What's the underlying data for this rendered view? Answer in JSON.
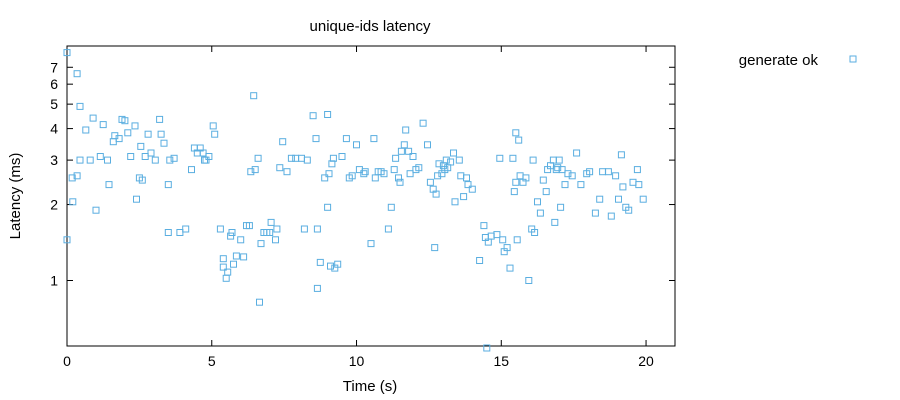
{
  "chart_data": {
    "type": "scatter",
    "title": "unique-ids latency",
    "xlabel": "Time (s)",
    "ylabel": "Latency (ms)",
    "x_scale": "linear",
    "y_scale": "log",
    "xlim": [
      0,
      21
    ],
    "ylim": [
      0.55,
      8.5
    ],
    "xticks": [
      0,
      5,
      10,
      15,
      20
    ],
    "yticks": [
      1,
      2,
      3,
      4,
      5,
      6,
      7
    ],
    "grid": false,
    "legend_position": "right",
    "series": [
      {
        "name": "generate ok",
        "color": "#5aaee0",
        "marker": "square",
        "points": [
          [
            0.0,
            8.0
          ],
          [
            0.0,
            1.45
          ],
          [
            0.18,
            2.55
          ],
          [
            0.2,
            2.05
          ],
          [
            0.35,
            6.6
          ],
          [
            0.35,
            2.6
          ],
          [
            0.45,
            4.9
          ],
          [
            0.45,
            3.0
          ],
          [
            0.65,
            3.95
          ],
          [
            0.8,
            3.0
          ],
          [
            0.9,
            4.4
          ],
          [
            1.0,
            1.9
          ],
          [
            1.15,
            3.1
          ],
          [
            1.25,
            4.15
          ],
          [
            1.4,
            3.0
          ],
          [
            1.45,
            2.4
          ],
          [
            1.6,
            3.55
          ],
          [
            1.65,
            3.75
          ],
          [
            1.8,
            3.65
          ],
          [
            1.9,
            4.35
          ],
          [
            2.0,
            4.3
          ],
          [
            2.1,
            3.85
          ],
          [
            2.2,
            3.1
          ],
          [
            2.35,
            4.1
          ],
          [
            2.4,
            2.1
          ],
          [
            2.5,
            2.55
          ],
          [
            2.55,
            3.4
          ],
          [
            2.6,
            2.5
          ],
          [
            2.7,
            3.1
          ],
          [
            2.8,
            3.8
          ],
          [
            2.9,
            3.2
          ],
          [
            3.05,
            3.0
          ],
          [
            3.2,
            4.35
          ],
          [
            3.25,
            3.8
          ],
          [
            3.35,
            3.5
          ],
          [
            3.5,
            2.4
          ],
          [
            3.5,
            1.55
          ],
          [
            3.55,
            3.0
          ],
          [
            3.7,
            3.05
          ],
          [
            3.9,
            1.55
          ],
          [
            4.1,
            1.6
          ],
          [
            4.3,
            2.75
          ],
          [
            4.4,
            3.35
          ],
          [
            4.5,
            3.2
          ],
          [
            4.6,
            3.35
          ],
          [
            4.7,
            3.2
          ],
          [
            4.75,
            3.0
          ],
          [
            4.8,
            3.0
          ],
          [
            4.9,
            3.1
          ],
          [
            5.05,
            4.1
          ],
          [
            5.1,
            3.8
          ],
          [
            5.3,
            1.6
          ],
          [
            5.4,
            1.22
          ],
          [
            5.4,
            1.13
          ],
          [
            5.5,
            1.02
          ],
          [
            5.55,
            1.08
          ],
          [
            5.65,
            1.5
          ],
          [
            5.7,
            1.55
          ],
          [
            5.75,
            1.16
          ],
          [
            5.85,
            1.25
          ],
          [
            6.0,
            1.45
          ],
          [
            6.1,
            1.24
          ],
          [
            6.2,
            1.65
          ],
          [
            6.3,
            1.65
          ],
          [
            6.35,
            2.7
          ],
          [
            6.45,
            5.4
          ],
          [
            6.5,
            2.75
          ],
          [
            6.6,
            3.05
          ],
          [
            6.65,
            0.82
          ],
          [
            6.7,
            1.4
          ],
          [
            6.8,
            1.55
          ],
          [
            6.9,
            1.55
          ],
          [
            7.0,
            1.55
          ],
          [
            7.05,
            1.7
          ],
          [
            7.2,
            1.45
          ],
          [
            7.25,
            1.6
          ],
          [
            7.35,
            2.8
          ],
          [
            7.45,
            3.55
          ],
          [
            7.6,
            2.7
          ],
          [
            7.75,
            3.05
          ],
          [
            7.9,
            3.05
          ],
          [
            8.1,
            3.05
          ],
          [
            8.2,
            1.6
          ],
          [
            8.3,
            3.0
          ],
          [
            8.5,
            4.5
          ],
          [
            8.6,
            3.65
          ],
          [
            8.65,
            1.6
          ],
          [
            8.65,
            0.93
          ],
          [
            8.75,
            1.18
          ],
          [
            8.9,
            2.55
          ],
          [
            9.0,
            4.55
          ],
          [
            9.0,
            1.95
          ],
          [
            9.05,
            2.65
          ],
          [
            9.1,
            1.14
          ],
          [
            9.15,
            2.9
          ],
          [
            9.2,
            3.05
          ],
          [
            9.25,
            1.12
          ],
          [
            9.35,
            1.16
          ],
          [
            9.5,
            3.1
          ],
          [
            9.65,
            3.65
          ],
          [
            9.75,
            2.55
          ],
          [
            9.85,
            2.6
          ],
          [
            10.0,
            3.45
          ],
          [
            10.1,
            2.75
          ],
          [
            10.25,
            2.65
          ],
          [
            10.3,
            2.7
          ],
          [
            10.5,
            1.4
          ],
          [
            10.6,
            3.65
          ],
          [
            10.65,
            2.55
          ],
          [
            10.75,
            2.7
          ],
          [
            10.85,
            2.7
          ],
          [
            10.95,
            2.65
          ],
          [
            11.1,
            1.6
          ],
          [
            11.2,
            1.95
          ],
          [
            11.3,
            2.75
          ],
          [
            11.35,
            3.05
          ],
          [
            11.45,
            2.55
          ],
          [
            11.5,
            2.45
          ],
          [
            11.55,
            3.25
          ],
          [
            11.65,
            3.45
          ],
          [
            11.7,
            3.95
          ],
          [
            11.8,
            3.25
          ],
          [
            11.85,
            2.65
          ],
          [
            11.95,
            3.1
          ],
          [
            12.05,
            2.75
          ],
          [
            12.15,
            2.8
          ],
          [
            12.3,
            4.2
          ],
          [
            12.45,
            3.45
          ],
          [
            12.55,
            2.45
          ],
          [
            12.65,
            2.3
          ],
          [
            12.7,
            1.35
          ],
          [
            12.75,
            2.2
          ],
          [
            12.8,
            2.6
          ],
          [
            12.85,
            2.9
          ],
          [
            12.95,
            2.65
          ],
          [
            13.0,
            2.85
          ],
          [
            13.05,
            2.75
          ],
          [
            13.1,
            3.0
          ],
          [
            13.15,
            2.8
          ],
          [
            13.25,
            2.95
          ],
          [
            13.35,
            3.2
          ],
          [
            13.4,
            2.05
          ],
          [
            13.55,
            3.0
          ],
          [
            13.6,
            2.6
          ],
          [
            13.7,
            2.15
          ],
          [
            13.8,
            2.55
          ],
          [
            13.85,
            2.4
          ],
          [
            14.0,
            2.3
          ],
          [
            14.25,
            1.2
          ],
          [
            14.4,
            1.65
          ],
          [
            14.45,
            1.48
          ],
          [
            14.5,
            0.54
          ],
          [
            14.55,
            1.42
          ],
          [
            14.65,
            1.5
          ],
          [
            14.85,
            1.52
          ],
          [
            14.95,
            3.05
          ],
          [
            15.05,
            1.45
          ],
          [
            15.1,
            1.3
          ],
          [
            15.2,
            1.35
          ],
          [
            15.3,
            1.12
          ],
          [
            15.4,
            3.05
          ],
          [
            15.45,
            2.25
          ],
          [
            15.5,
            2.45
          ],
          [
            15.5,
            3.85
          ],
          [
            15.55,
            1.45
          ],
          [
            15.6,
            3.6
          ],
          [
            15.65,
            2.6
          ],
          [
            15.75,
            2.45
          ],
          [
            15.85,
            2.55
          ],
          [
            15.95,
            1.0
          ],
          [
            16.05,
            1.6
          ],
          [
            16.1,
            3.0
          ],
          [
            16.15,
            1.55
          ],
          [
            16.25,
            2.05
          ],
          [
            16.35,
            1.85
          ],
          [
            16.45,
            2.5
          ],
          [
            16.55,
            2.25
          ],
          [
            16.6,
            2.75
          ],
          [
            16.7,
            2.85
          ],
          [
            16.8,
            3.0
          ],
          [
            16.85,
            1.7
          ],
          [
            16.9,
            2.75
          ],
          [
            16.95,
            2.8
          ],
          [
            17.0,
            3.0
          ],
          [
            17.05,
            1.95
          ],
          [
            17.1,
            2.75
          ],
          [
            17.2,
            2.4
          ],
          [
            17.3,
            2.65
          ],
          [
            17.45,
            2.6
          ],
          [
            17.6,
            3.2
          ],
          [
            17.75,
            2.4
          ],
          [
            17.95,
            2.65
          ],
          [
            18.05,
            2.7
          ],
          [
            18.25,
            1.85
          ],
          [
            18.4,
            2.1
          ],
          [
            18.5,
            2.7
          ],
          [
            18.7,
            2.7
          ],
          [
            18.8,
            1.8
          ],
          [
            18.95,
            2.6
          ],
          [
            19.05,
            2.1
          ],
          [
            19.15,
            3.15
          ],
          [
            19.2,
            2.35
          ],
          [
            19.3,
            1.95
          ],
          [
            19.4,
            1.9
          ],
          [
            19.55,
            2.45
          ],
          [
            19.7,
            2.75
          ],
          [
            19.75,
            2.4
          ],
          [
            19.9,
            2.1
          ]
        ]
      }
    ]
  }
}
